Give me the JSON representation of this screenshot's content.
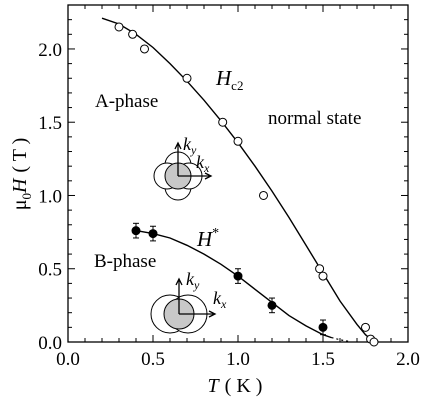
{
  "chart_data": {
    "type": "scatter",
    "xlabel": {
      "var": "T",
      "unit": "( K )"
    },
    "ylabel": {
      "pre": "μ",
      "sub": "0",
      "var": "H",
      "unit": "( T )"
    },
    "xlim": [
      0.0,
      2.0
    ],
    "ylim": [
      0.0,
      2.3
    ],
    "xticks": [
      "0.0",
      "0.5",
      "1.0",
      "1.5",
      "2.0"
    ],
    "yticks": [
      "0.0",
      "0.5",
      "1.0",
      "1.5",
      "2.0"
    ],
    "series": [
      {
        "name": "Hc2",
        "label_main": "H",
        "label_sub": "c2",
        "marker": "open-circle",
        "points": [
          [
            0.3,
            2.15
          ],
          [
            0.38,
            2.1
          ],
          [
            0.45,
            2.0
          ],
          [
            0.7,
            1.8
          ],
          [
            0.91,
            1.5
          ],
          [
            1.0,
            1.37
          ],
          [
            1.15,
            1.0
          ],
          [
            1.48,
            0.5
          ],
          [
            1.5,
            0.45
          ],
          [
            1.75,
            0.1
          ],
          [
            1.78,
            0.02
          ],
          [
            1.8,
            0.0
          ]
        ],
        "curve": [
          [
            0.2,
            2.21
          ],
          [
            0.3,
            2.17
          ],
          [
            0.4,
            2.1
          ],
          [
            0.5,
            2.01
          ],
          [
            0.6,
            1.9
          ],
          [
            0.7,
            1.78
          ],
          [
            0.8,
            1.65
          ],
          [
            0.9,
            1.51
          ],
          [
            1.0,
            1.36
          ],
          [
            1.1,
            1.2
          ],
          [
            1.2,
            1.03
          ],
          [
            1.3,
            0.85
          ],
          [
            1.4,
            0.66
          ],
          [
            1.5,
            0.47
          ],
          [
            1.6,
            0.28
          ],
          [
            1.7,
            0.12
          ],
          [
            1.75,
            0.05
          ],
          [
            1.8,
            0.0
          ]
        ]
      },
      {
        "name": "H*",
        "label_main": "H",
        "label_sup": "*",
        "marker": "filled-circle",
        "points": [
          [
            0.4,
            0.76
          ],
          [
            0.5,
            0.74
          ],
          [
            1.0,
            0.45
          ],
          [
            1.2,
            0.25
          ],
          [
            1.5,
            0.1
          ]
        ],
        "errors": [
          0.05,
          0.05,
          0.05,
          0.05,
          0.05
        ],
        "curve": [
          [
            0.4,
            0.76
          ],
          [
            0.5,
            0.74
          ],
          [
            0.6,
            0.71
          ],
          [
            0.7,
            0.66
          ],
          [
            0.8,
            0.6
          ],
          [
            0.9,
            0.53
          ],
          [
            1.0,
            0.45
          ],
          [
            1.1,
            0.36
          ],
          [
            1.2,
            0.27
          ],
          [
            1.3,
            0.18
          ],
          [
            1.4,
            0.11
          ],
          [
            1.5,
            0.05
          ],
          [
            1.55,
            0.03
          ]
        ],
        "dotted_curve": [
          [
            1.55,
            0.03
          ],
          [
            1.6,
            0.015
          ],
          [
            1.65,
            0.005
          ]
        ]
      }
    ],
    "annotations": {
      "a_phase": "A-phase",
      "b_phase": "B-phase",
      "normal_state": "normal state",
      "kx": "k",
      "kx_sub": "x",
      "ky": "k",
      "ky_sub": "y"
    }
  }
}
